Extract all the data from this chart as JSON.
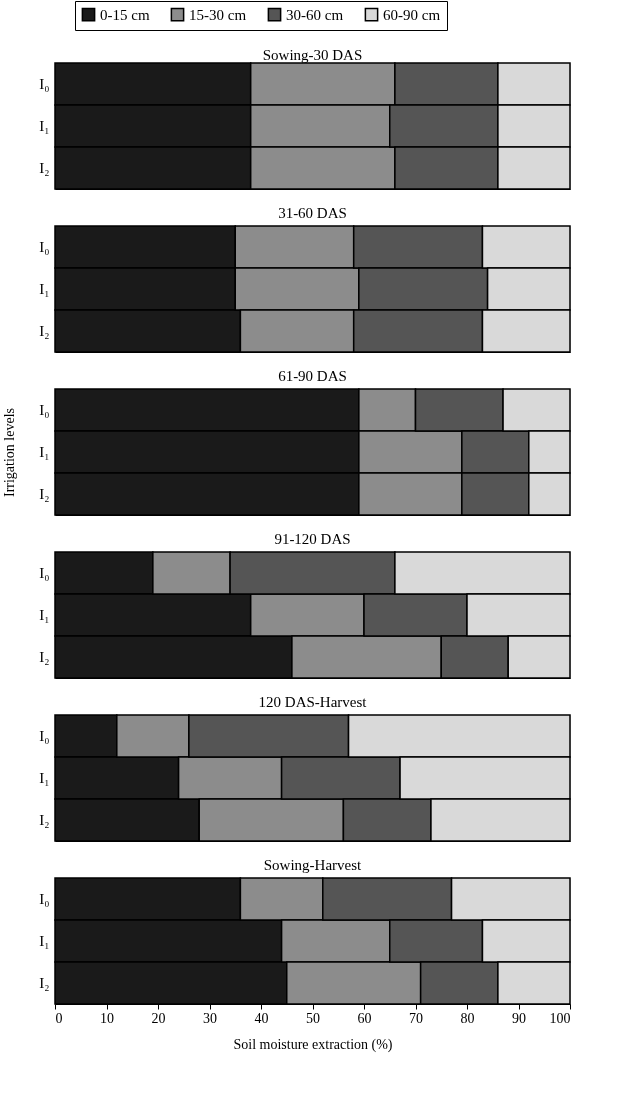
{
  "chart_data": [
    {
      "type": "bar",
      "orientation": "horizontal",
      "stacked": true,
      "title": "Sowing-30 DAS",
      "categories": [
        "I₀",
        "I₁",
        "I₂"
      ],
      "xlim": [
        0,
        100
      ],
      "tick_labels": "y",
      "legend": "top",
      "series": [
        {
          "name": "0-15 cm",
          "color": "#1a1a1a",
          "values": [
            38,
            38,
            38
          ]
        },
        {
          "name": "15-30 cm",
          "color": "#8c8c8c",
          "values": [
            28,
            27,
            28
          ]
        },
        {
          "name": "30-60 cm",
          "color": "#555555",
          "values": [
            20,
            21,
            20
          ]
        },
        {
          "name": "60-90 cm",
          "color": "#d9d9d9",
          "values": [
            14,
            14,
            14
          ]
        }
      ]
    },
    {
      "type": "bar",
      "orientation": "horizontal",
      "stacked": true,
      "title": "31-60 DAS",
      "categories": [
        "I₀",
        "I₁",
        "I₂"
      ],
      "xlim": [
        0,
        100
      ],
      "tick_labels": "y",
      "series": [
        {
          "name": "0-15 cm",
          "color": "#1a1a1a",
          "values": [
            35,
            35,
            36
          ]
        },
        {
          "name": "15-30 cm",
          "color": "#8c8c8c",
          "values": [
            23,
            24,
            22
          ]
        },
        {
          "name": "30-60 cm",
          "color": "#555555",
          "values": [
            25,
            25,
            25
          ]
        },
        {
          "name": "60-90 cm",
          "color": "#d9d9d9",
          "values": [
            17,
            16,
            17
          ]
        }
      ]
    },
    {
      "type": "bar",
      "orientation": "horizontal",
      "stacked": true,
      "title": "61-90 DAS",
      "categories": [
        "I₀",
        "I₁",
        "I₂"
      ],
      "xlim": [
        0,
        100
      ],
      "tick_labels": "y",
      "ylabel": "Irrigation levels",
      "series": [
        {
          "name": "0-15 cm",
          "color": "#1a1a1a",
          "values": [
            59,
            59,
            59
          ]
        },
        {
          "name": "15-30 cm",
          "color": "#8c8c8c",
          "values": [
            11,
            20,
            20
          ]
        },
        {
          "name": "30-60 cm",
          "color": "#555555",
          "values": [
            17,
            13,
            13
          ]
        },
        {
          "name": "60-90 cm",
          "color": "#d9d9d9",
          "values": [
            13,
            8,
            8
          ]
        }
      ]
    },
    {
      "type": "bar",
      "orientation": "horizontal",
      "stacked": true,
      "title": "91-120 DAS",
      "categories": [
        "I₀",
        "I₁",
        "I₂"
      ],
      "xlim": [
        0,
        100
      ],
      "tick_labels": "y",
      "series": [
        {
          "name": "0-15 cm",
          "color": "#1a1a1a",
          "values": [
            19,
            38,
            46
          ]
        },
        {
          "name": "15-30 cm",
          "color": "#8c8c8c",
          "values": [
            15,
            22,
            29
          ]
        },
        {
          "name": "30-60 cm",
          "color": "#555555",
          "values": [
            32,
            20,
            13
          ]
        },
        {
          "name": "60-90 cm",
          "color": "#d9d9d9",
          "values": [
            34,
            20,
            12
          ]
        }
      ]
    },
    {
      "type": "bar",
      "orientation": "horizontal",
      "stacked": true,
      "title": "120 DAS-Harvest",
      "categories": [
        "I₀",
        "I₁",
        "I₂"
      ],
      "xlim": [
        0,
        100
      ],
      "tick_labels": "y",
      "series": [
        {
          "name": "0-15 cm",
          "color": "#1a1a1a",
          "values": [
            12,
            24,
            28
          ]
        },
        {
          "name": "15-30 cm",
          "color": "#8c8c8c",
          "values": [
            14,
            20,
            28
          ]
        },
        {
          "name": "30-60 cm",
          "color": "#555555",
          "values": [
            31,
            23,
            17
          ]
        },
        {
          "name": "60-90 cm",
          "color": "#d9d9d9",
          "values": [
            43,
            33,
            27
          ]
        }
      ]
    },
    {
      "type": "bar",
      "orientation": "horizontal",
      "stacked": true,
      "title": "Sowing-Harvest",
      "categories": [
        "I₀",
        "I₁",
        "I₂"
      ],
      "xlim": [
        0,
        100
      ],
      "xticks": [
        0,
        10,
        20,
        30,
        40,
        50,
        60,
        70,
        80,
        90,
        100
      ],
      "xlabel": "Soil moisture extraction (%)",
      "series": [
        {
          "name": "0-15 cm",
          "color": "#1a1a1a",
          "values": [
            36,
            44,
            45
          ]
        },
        {
          "name": "15-30 cm",
          "color": "#8c8c8c",
          "values": [
            16,
            21,
            26
          ]
        },
        {
          "name": "30-60 cm",
          "color": "#555555",
          "values": [
            25,
            18,
            15
          ]
        },
        {
          "name": "60-90 cm",
          "color": "#d9d9d9",
          "values": [
            23,
            17,
            14
          ]
        }
      ]
    }
  ]
}
